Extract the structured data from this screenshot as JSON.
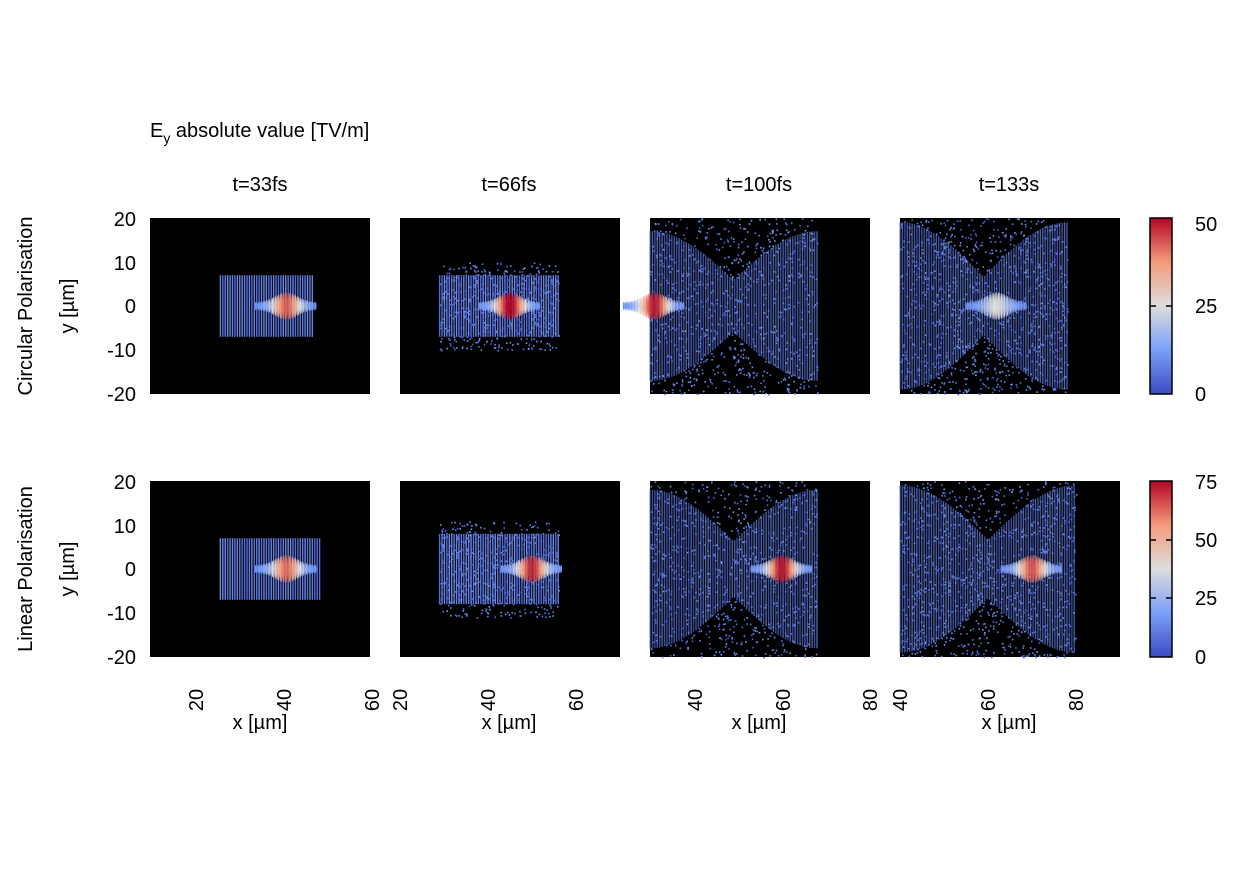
{
  "figure_title": "E",
  "figure_title_sub": "y",
  "figure_title_rest": " absolute value [TV/m]",
  "row_labels": [
    "Circular Polarisation",
    "Linear Polarisation"
  ],
  "y_axis_label": "y [µm]",
  "x_axis_label": "x [µm]",
  "column_titles": [
    "t=33fs",
    "t=66fs",
    "t=100fs",
    "t=133s"
  ],
  "colormap": {
    "low": "#3b4cc0",
    "mid": "#dddddd",
    "high": "#b40426",
    "background": "#000000"
  },
  "chart_data": [
    {
      "type": "heatmap",
      "title": "t=33fs",
      "row": "Circular Polarisation",
      "xlim": [
        10,
        60
      ],
      "ylim": [
        -20,
        20
      ],
      "xticks": [
        20,
        40,
        60
      ],
      "yticks": [
        -20,
        -10,
        0,
        10,
        20
      ],
      "clim": [
        0,
        50
      ],
      "pulse": {
        "x_start": 26,
        "x_front": 47,
        "y_half_width": 7,
        "peak_x": 41,
        "peak_value": 38,
        "spread": 0
      }
    },
    {
      "type": "heatmap",
      "title": "t=66fs",
      "row": "Circular Polarisation",
      "xlim": [
        20,
        70
      ],
      "ylim": [
        -20,
        20
      ],
      "xticks": [
        20,
        40,
        60
      ],
      "yticks": [
        -20,
        -10,
        0,
        10,
        20
      ],
      "clim": [
        0,
        50
      ],
      "pulse": {
        "x_start": 29,
        "x_front": 56,
        "y_half_width": 7,
        "peak_x": 45,
        "peak_value": 48,
        "spread": 1
      }
    },
    {
      "type": "heatmap",
      "title": "t=100fs",
      "row": "Circular Polarisation",
      "xlim": [
        30,
        80
      ],
      "ylim": [
        -20,
        20
      ],
      "xticks": [
        40,
        60,
        80
      ],
      "yticks": [
        -20,
        -10,
        0,
        10,
        20
      ],
      "clim": [
        0,
        50
      ],
      "pulse": {
        "x_start": 30,
        "x_front": 68,
        "y_half_width": 17,
        "peak_x": 31,
        "peak_value": 45,
        "spread": 2
      }
    },
    {
      "type": "heatmap",
      "title": "t=133s",
      "row": "Circular Polarisation",
      "xlim": [
        40,
        90
      ],
      "ylim": [
        -20,
        20
      ],
      "xticks": [
        40,
        60,
        80
      ],
      "yticks": [
        -20,
        -10,
        0,
        10,
        20
      ],
      "clim": [
        0,
        50
      ],
      "pulse": {
        "x_start": 40,
        "x_front": 78,
        "y_half_width": 19,
        "peak_x": 62,
        "peak_value": 18,
        "spread": 3
      }
    },
    {
      "type": "heatmap",
      "title": "t=33fs",
      "row": "Linear Polarisation",
      "xlim": [
        10,
        60
      ],
      "ylim": [
        -20,
        20
      ],
      "xticks": [
        20,
        40,
        60
      ],
      "yticks": [
        -20,
        -10,
        0,
        10,
        20
      ],
      "clim": [
        0,
        75
      ],
      "pulse": {
        "x_start": 26,
        "x_front": 49,
        "y_half_width": 7,
        "peak_x": 41,
        "peak_value": 55,
        "spread": 0
      }
    },
    {
      "type": "heatmap",
      "title": "t=66fs",
      "row": "Linear Polarisation",
      "xlim": [
        20,
        70
      ],
      "ylim": [
        -20,
        20
      ],
      "xticks": [
        20,
        40,
        60
      ],
      "yticks": [
        -20,
        -10,
        0,
        10,
        20
      ],
      "clim": [
        0,
        75
      ],
      "pulse": {
        "x_start": 29,
        "x_front": 56,
        "y_half_width": 8,
        "peak_x": 50,
        "peak_value": 65,
        "spread": 1
      }
    },
    {
      "type": "heatmap",
      "title": "t=100fs",
      "row": "Linear Polarisation",
      "xlim": [
        30,
        80
      ],
      "ylim": [
        -20,
        20
      ],
      "xticks": [
        40,
        60,
        80
      ],
      "yticks": [
        -20,
        -10,
        0,
        10,
        20
      ],
      "clim": [
        0,
        75
      ],
      "pulse": {
        "x_start": 30,
        "x_front": 68,
        "y_half_width": 18,
        "peak_x": 60,
        "peak_value": 68,
        "spread": 2
      }
    },
    {
      "type": "heatmap",
      "title": "t=133s",
      "row": "Linear Polarisation",
      "xlim": [
        40,
        90
      ],
      "ylim": [
        -20,
        20
      ],
      "xticks": [
        40,
        60,
        80
      ],
      "yticks": [
        -20,
        -10,
        0,
        10,
        20
      ],
      "clim": [
        0,
        75
      ],
      "pulse": {
        "x_start": 40,
        "x_front": 80,
        "y_half_width": 19,
        "peak_x": 70,
        "peak_value": 58,
        "spread": 3
      }
    }
  ],
  "colorbars": [
    {
      "row": "Circular Polarisation",
      "ticks": [
        0,
        25,
        50
      ],
      "range": [
        0,
        50
      ]
    },
    {
      "row": "Linear Polarisation",
      "ticks": [
        0,
        25,
        50,
        75
      ],
      "range": [
        0,
        75
      ]
    }
  ]
}
